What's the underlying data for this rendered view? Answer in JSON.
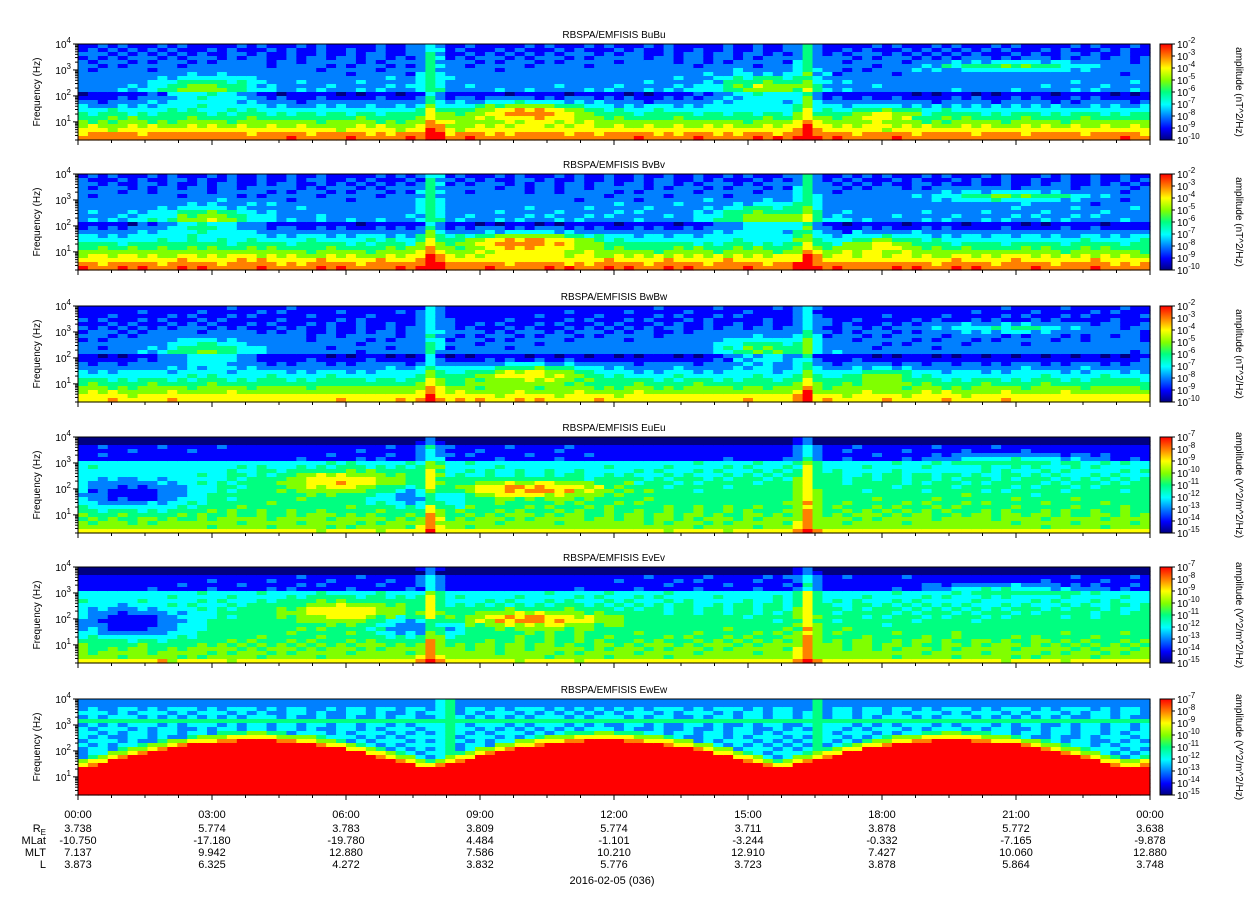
{
  "chart_data": {
    "type": "heatmap",
    "date_label": "2016-02-05 (036)",
    "x_ticks": [
      "00:00",
      "03:00",
      "06:00",
      "09:00",
      "12:00",
      "15:00",
      "18:00",
      "21:00",
      "00:00"
    ],
    "y_ticks": [
      {
        "base": "10",
        "exp": "1"
      },
      {
        "base": "10",
        "exp": "2"
      },
      {
        "base": "10",
        "exp": "3"
      },
      {
        "base": "10",
        "exp": "4"
      }
    ],
    "ylabel": "Frequency (Hz)",
    "ylim_hz": [
      2,
      10000
    ],
    "panels": [
      {
        "title": "RBSPA/EMFISIS  BuBu",
        "zlabel": "amplitude (nT^2/Hz)",
        "zexp": [
          "-2",
          "-3",
          "-4",
          "-5",
          "-6",
          "-7",
          "-8",
          "-9",
          "-10"
        ],
        "profile": "b",
        "scale": 1.0
      },
      {
        "title": "RBSPA/EMFISIS  BvBv",
        "zlabel": "amplitude (nT^2/Hz)",
        "zexp": [
          "-2",
          "-3",
          "-4",
          "-5",
          "-6",
          "-7",
          "-8",
          "-9",
          "-10"
        ],
        "profile": "b",
        "scale": 1.02
      },
      {
        "title": "RBSPA/EMFISIS  BwBw",
        "zlabel": "amplitude (nT^2/Hz)",
        "zexp": [
          "-2",
          "-3",
          "-4",
          "-5",
          "-6",
          "-7",
          "-8",
          "-9",
          "-10"
        ],
        "profile": "b",
        "scale": 0.88
      },
      {
        "title": "RBSPA/EMFISIS  EuEu",
        "zlabel": "amplitude (V^2/m^2/Hz)",
        "zexp": [
          "-7",
          "-8",
          "-9",
          "-10",
          "-11",
          "-12",
          "-13",
          "-14",
          "-15"
        ],
        "profile": "e",
        "scale": 1.0
      },
      {
        "title": "RBSPA/EMFISIS  EvEv",
        "zlabel": "amplitude (V^2/m^2/Hz)",
        "zexp": [
          "-7",
          "-8",
          "-9",
          "-10",
          "-11",
          "-12",
          "-13",
          "-14",
          "-15"
        ],
        "profile": "e",
        "scale": 1.0
      },
      {
        "title": "RBSPA/EMFISIS  EwEw",
        "zlabel": "amplitude (V^2/m^2/Hz)",
        "zexp": [
          "-7",
          "-8",
          "-9",
          "-10",
          "-11",
          "-12",
          "-13",
          "-14",
          "-15"
        ],
        "profile": "ew",
        "scale": 1.0
      }
    ],
    "ephemeris": {
      "RE": {
        "label": "R",
        "sub": "E",
        "values": [
          "3.738",
          "5.774",
          "3.783",
          "3.809",
          "5.774",
          "3.711",
          "3.878",
          "5.772",
          "3.638"
        ]
      },
      "MLat": {
        "label": "MLat",
        "sub": "",
        "values": [
          "-10.750",
          "-17.180",
          "-19.780",
          "4.484",
          "-1.101",
          "-3.244",
          "-0.332",
          "-7.165",
          "-9.878"
        ]
      },
      "MLT": {
        "label": "MLT",
        "sub": "",
        "values": [
          "7.137",
          "9.942",
          "12.880",
          "7.586",
          "10.210",
          "12.910",
          "7.427",
          "10.060",
          "12.880"
        ]
      },
      "L": {
        "label": "L",
        "sub": "",
        "values": [
          "3.873",
          "6.325",
          "4.272",
          "3.832",
          "5.776",
          "3.723",
          "3.878",
          "5.864",
          "3.748"
        ]
      }
    },
    "colormap": [
      "#000080",
      "#0000ff",
      "#0080ff",
      "#00ffff",
      "#00ff80",
      "#80ff00",
      "#ffff00",
      "#ff8000",
      "#ff0000"
    ]
  }
}
